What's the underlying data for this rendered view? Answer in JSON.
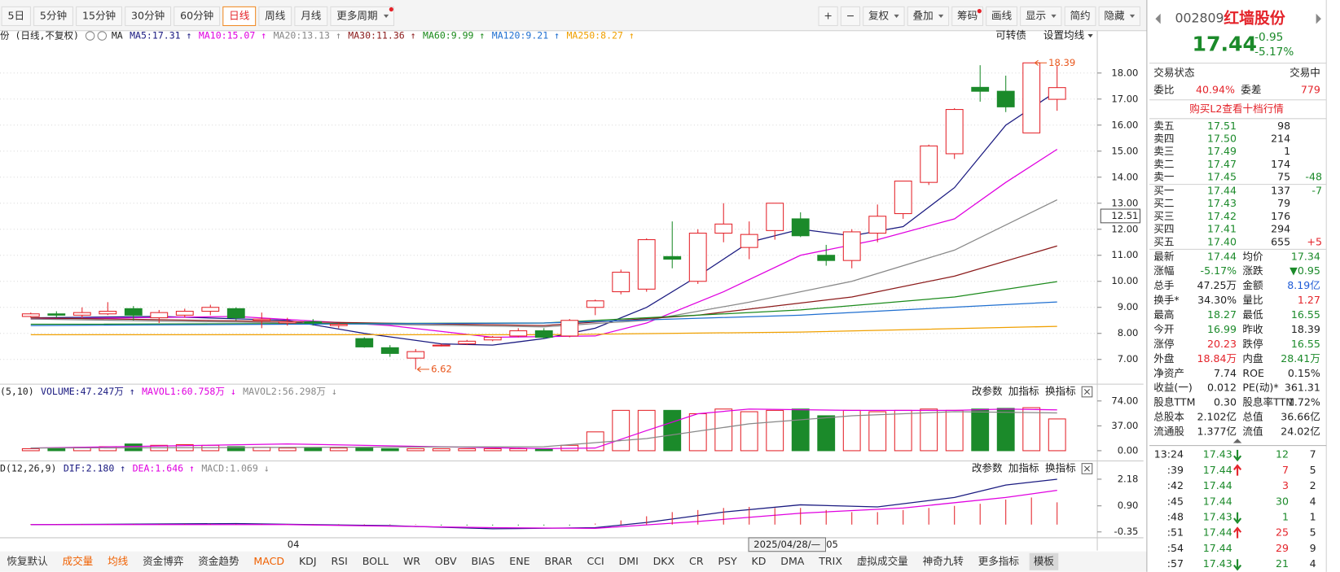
{
  "colors": {
    "up": "#e4232a",
    "down": "#1b8a2a",
    "neutral": "#222222",
    "blue": "#1e5bd6"
  },
  "toolbar": {
    "periods": [
      "5日",
      "5分钟",
      "15分钟",
      "30分钟",
      "60分钟",
      "日线",
      "周线",
      "月线",
      "更多周期"
    ],
    "active": 5,
    "period_menus": [
      8
    ],
    "period_dots": [
      8
    ],
    "tools": [
      "+",
      "−",
      "复权",
      "叠加",
      "筹码",
      "画线",
      "显示",
      "简约",
      "隐藏"
    ],
    "tool_menus": [
      2,
      3,
      6,
      8
    ],
    "tool_dots": [
      4
    ]
  },
  "panel_buttons": [
    "改参数",
    "加指标",
    "换指标"
  ],
  "chart_data": [
    {
      "type": "candlestick",
      "title": "份 (日线,不复权)",
      "ma_label": "MA",
      "extra_buttons": [
        "可转债",
        "设置均线"
      ],
      "categories": [
        null,
        null,
        null,
        null,
        null,
        null,
        null,
        null,
        null,
        null,
        "04",
        null,
        null,
        null,
        null,
        null,
        null,
        null,
        null,
        null,
        null,
        null,
        null,
        null,
        null,
        null,
        null,
        null,
        null,
        null,
        null,
        "05",
        null,
        null,
        null,
        null,
        null,
        null,
        null,
        null,
        null
      ],
      "cursor_label": "2025/04/28/—",
      "open": [
        8.65,
        8.75,
        8.7,
        8.75,
        8.95,
        8.6,
        8.7,
        8.85,
        8.95,
        8.5,
        8.4,
        8.45,
        8.3,
        7.8,
        7.45,
        7.05,
        7.55,
        7.6,
        7.75,
        7.9,
        8.1,
        7.9,
        9.0,
        9.6,
        9.7,
        10.95,
        10.0,
        11.85,
        11.3,
        11.95,
        12.4,
        11.0,
        10.8,
        11.85,
        12.6,
        13.8,
        14.9,
        17.45,
        17.3,
        15.7,
        16.99
      ],
      "high": [
        8.8,
        8.85,
        9.0,
        9.2,
        9.05,
        8.9,
        8.95,
        9.1,
        9.0,
        8.8,
        8.6,
        8.55,
        8.4,
        7.85,
        7.55,
        7.4,
        7.6,
        7.75,
        7.9,
        8.2,
        8.2,
        8.55,
        9.3,
        10.45,
        11.65,
        12.3,
        12.0,
        13.0,
        12.3,
        13.0,
        12.65,
        11.4,
        12.0,
        12.95,
        13.85,
        15.25,
        16.65,
        18.3,
        17.9,
        18.39,
        18.27
      ],
      "low": [
        8.6,
        8.6,
        8.6,
        8.7,
        8.5,
        8.4,
        8.6,
        8.7,
        8.5,
        8.2,
        8.3,
        8.3,
        8.2,
        7.45,
        7.1,
        6.62,
        7.5,
        7.55,
        7.7,
        7.85,
        7.8,
        7.85,
        8.7,
        9.5,
        9.6,
        10.5,
        9.9,
        11.5,
        10.85,
        11.6,
        11.7,
        10.6,
        10.5,
        11.5,
        12.4,
        13.7,
        14.7,
        16.9,
        16.5,
        15.7,
        16.55
      ],
      "close": [
        8.75,
        8.7,
        8.8,
        8.85,
        8.7,
        8.8,
        8.85,
        9.0,
        8.6,
        8.55,
        8.45,
        8.4,
        8.35,
        7.48,
        7.23,
        7.3,
        7.55,
        7.7,
        7.85,
        8.1,
        7.85,
        8.5,
        9.25,
        10.35,
        11.6,
        10.85,
        11.85,
        12.2,
        11.8,
        13.0,
        11.75,
        10.8,
        11.9,
        12.5,
        13.85,
        15.2,
        16.6,
        17.3,
        16.7,
        18.39,
        17.44
      ],
      "up_color": "#e4232a",
      "down_color": "#1b8a2a",
      "max_label": 18.39,
      "min_label": 6.62,
      "marker_color": "#e8561c",
      "cursor_price": 12.51,
      "series": [
        {
          "name": "MA5:17.31 ↑",
          "color": "#1a1a80",
          "x": [
            0,
            5,
            10,
            13,
            16,
            18,
            20,
            22,
            24,
            26,
            28,
            30,
            32,
            34,
            36,
            38,
            40
          ],
          "values": [
            8.6,
            8.65,
            8.5,
            8.0,
            7.6,
            7.55,
            7.8,
            8.2,
            9.0,
            10.2,
            11.5,
            12.0,
            11.75,
            12.1,
            13.6,
            16.0,
            17.31
          ]
        },
        {
          "name": "MA10:15.07 ↑",
          "color": "#e000e0",
          "x": [
            0,
            8,
            14,
            18,
            22,
            24,
            27,
            30,
            33,
            36,
            38,
            40
          ],
          "values": [
            8.55,
            8.65,
            8.3,
            7.85,
            7.9,
            8.4,
            9.6,
            11.0,
            11.6,
            12.4,
            13.8,
            15.07
          ]
        },
        {
          "name": "MA20:13.13 ↑",
          "color": "#888888",
          "x": [
            0,
            20,
            24,
            28,
            32,
            36,
            40
          ],
          "values": [
            8.55,
            8.25,
            8.5,
            9.2,
            10.0,
            11.2,
            13.13
          ]
        },
        {
          "name": "MA30:11.36 ↑",
          "color": "#8b1a1a",
          "x": [
            0,
            20,
            26,
            32,
            36,
            40
          ],
          "values": [
            8.6,
            8.3,
            8.7,
            9.4,
            10.2,
            11.36
          ]
        },
        {
          "name": "MA60:9.99 ↑",
          "color": "#1b8a1b",
          "x": [
            0,
            20,
            30,
            36,
            40
          ],
          "values": [
            8.35,
            8.4,
            8.9,
            9.4,
            9.99
          ]
        },
        {
          "name": "MA120:9.21 ↑",
          "color": "#1f6fd0",
          "x": [
            0,
            20,
            30,
            40
          ],
          "values": [
            8.3,
            8.4,
            8.7,
            9.21
          ]
        },
        {
          "name": "MA250:8.27 ↑",
          "color": "#f0a000",
          "x": [
            0,
            20,
            30,
            40
          ],
          "values": [
            7.95,
            7.95,
            8.05,
            8.27
          ]
        }
      ],
      "xlim": [
        -1.2,
        41.5
      ],
      "ylim": [
        6.15,
        19.1
      ],
      "yticks": [
        {
          "value": 7,
          "label": "7.00"
        },
        {
          "value": 8,
          "label": "8.00"
        },
        {
          "value": 9,
          "label": "9.00"
        },
        {
          "value": 10,
          "label": "10.00"
        },
        {
          "value": 11,
          "label": "11.00"
        },
        {
          "value": 12,
          "label": "12.00"
        },
        {
          "value": 13,
          "label": "13.00"
        },
        {
          "value": 14,
          "label": "14.00"
        },
        {
          "value": 15,
          "label": "15.00"
        },
        {
          "value": 16,
          "label": "16.00"
        },
        {
          "value": 17,
          "label": "17.00"
        },
        {
          "value": 18,
          "label": "18.00"
        }
      ],
      "grid": true
    },
    {
      "type": "bar",
      "title": "(5,10)",
      "up_color": "#e4232a",
      "down_color": "#1b8a2a",
      "series": [
        {
          "name": "VOLUME:47.247万 ↑",
          "color": "#1a1a80",
          "kind": "bar",
          "values": [
            3,
            4,
            5,
            6,
            10,
            8,
            9,
            8,
            6,
            5,
            4,
            4,
            4,
            4,
            3,
            3,
            3,
            3,
            3,
            3,
            3,
            8,
            28,
            60,
            60,
            60,
            55,
            62,
            58,
            60,
            62,
            52,
            60,
            58,
            60,
            62,
            60,
            62,
            63,
            64,
            47.247
          ]
        },
        {
          "name": "MAVOL1:60.758万 ↓",
          "color": "#e000e0",
          "kind": "line",
          "x": [
            0,
            10,
            20,
            22,
            24,
            26,
            28,
            32,
            36,
            38,
            40
          ],
          "values": [
            4,
            10,
            3,
            4,
            30,
            55,
            62,
            60,
            60,
            62,
            60.758
          ]
        },
        {
          "name": "MAVOL2:56.298万 ↓",
          "color": "#888888",
          "kind": "line",
          "x": [
            0,
            20,
            24,
            28,
            32,
            36,
            40
          ],
          "values": [
            4,
            6,
            18,
            40,
            52,
            58,
            56.298
          ]
        }
      ],
      "xlim": [
        -1.2,
        41.5
      ],
      "ylim": [
        0,
        80
      ],
      "yticks": [
        {
          "value": 0,
          "label": "0.00"
        },
        {
          "value": 37,
          "label": "37.00"
        },
        {
          "value": 74,
          "label": "74.00"
        }
      ]
    },
    {
      "type": "bar",
      "title": "D(12,26,9)",
      "up_color": "#e4232a",
      "down_color": "#1b8a2a",
      "series": [
        {
          "name": "DIF:2.180 ↑",
          "color": "#1a1a80",
          "kind": "line",
          "x": [
            0,
            8,
            14,
            18,
            22,
            24,
            27,
            30,
            33,
            36,
            38,
            40
          ],
          "values": [
            0.0,
            0.05,
            -0.05,
            -0.2,
            -0.15,
            0.1,
            0.6,
            0.95,
            0.85,
            1.3,
            1.9,
            2.18
          ]
        },
        {
          "name": "DEA:1.646 ↑",
          "color": "#e000e0",
          "kind": "line",
          "x": [
            0,
            10,
            18,
            22,
            26,
            30,
            34,
            38,
            40
          ],
          "values": [
            0.0,
            0.0,
            -0.15,
            -0.18,
            0.15,
            0.55,
            0.8,
            1.3,
            1.646
          ]
        },
        {
          "name": "MACD:1.069 ↓",
          "color": "#888888",
          "kind": "stem",
          "values": [
            0.02,
            0.02,
            0.02,
            0.02,
            0.02,
            0.02,
            0.02,
            0.02,
            0.02,
            0.02,
            0.02,
            0.02,
            0.02,
            0.02,
            0.02,
            0.02,
            -0.05,
            -0.05,
            -0.05,
            -0.05,
            -0.05,
            -0.05,
            0.05,
            0.2,
            0.4,
            0.6,
            0.7,
            0.8,
            0.85,
            0.8,
            0.8,
            0.7,
            0.6,
            0.6,
            0.7,
            0.8,
            0.9,
            1.0,
            1.2,
            1.3,
            1.069
          ]
        }
      ],
      "xlim": [
        -1.2,
        41.5
      ],
      "ylim": [
        -0.55,
        2.4
      ],
      "yticks": [
        {
          "value": -0.35,
          "label": "-0.35"
        },
        {
          "value": 0.9,
          "label": "0.90"
        },
        2.18
      ]
    }
  ],
  "quote": {
    "code": "002809",
    "name": "红墙股份",
    "price": "17.44",
    "change": "-0.95",
    "change_pct": "-5.17%",
    "status_label": "交易状态",
    "status": "交易中",
    "ratio_label": "委比",
    "ratio": "40.94%",
    "diff_label": "委差",
    "diff": "779",
    "l2_link": "购买L2查看十档行情",
    "asks": [
      {
        "label": "卖五",
        "price": "17.51",
        "volume": "98"
      },
      {
        "label": "卖四",
        "price": "17.50",
        "volume": "214"
      },
      {
        "label": "卖三",
        "price": "17.49",
        "volume": "1"
      },
      {
        "label": "卖二",
        "price": "17.47",
        "volume": "174"
      },
      {
        "label": "卖一",
        "price": "17.45",
        "volume": "75",
        "change": "-48"
      }
    ],
    "bids": [
      {
        "label": "买一",
        "price": "17.44",
        "volume": "137",
        "change": "-7"
      },
      {
        "label": "买二",
        "price": "17.43",
        "volume": "79"
      },
      {
        "label": "买三",
        "price": "17.42",
        "volume": "176"
      },
      {
        "label": "买四",
        "price": "17.41",
        "volume": "294"
      },
      {
        "label": "买五",
        "price": "17.40",
        "volume": "655",
        "change": "+5"
      }
    ],
    "stats": [
      {
        "cells": [
          "最新",
          "17.44",
          "均价",
          "17.34"
        ],
        "tones": [
          "down",
          "down"
        ]
      },
      {
        "cells": [
          "涨幅",
          "-5.17%",
          "涨跌",
          "▼0.95"
        ],
        "tones": [
          "down",
          "down"
        ]
      },
      {
        "cells": [
          "总手",
          "47.25万",
          "金额",
          "8.19亿"
        ],
        "tones": [
          "neutral",
          "blue"
        ]
      },
      {
        "cells": [
          "换手*",
          "34.30%",
          "量比",
          "1.27"
        ],
        "tones": [
          "neutral",
          "up"
        ]
      },
      {
        "cells": [
          "最高",
          "18.27",
          "最低",
          "16.55"
        ],
        "tones": [
          "down",
          "down"
        ]
      },
      {
        "cells": [
          "今开",
          "16.99",
          "昨收",
          "18.39"
        ],
        "tones": [
          "down",
          "neutral"
        ]
      },
      {
        "cells": [
          "涨停",
          "20.23",
          "跌停",
          "16.55"
        ],
        "tones": [
          "up",
          "down"
        ]
      },
      {
        "cells": [
          "外盘",
          "18.84万",
          "内盘",
          "28.41万"
        ],
        "tones": [
          "up",
          "down"
        ]
      },
      {
        "cells": [
          "净资产",
          "7.74",
          "ROE",
          "0.15%"
        ],
        "tones": [
          "neutral",
          "neutral"
        ]
      },
      {
        "cells": [
          "收益(一)",
          "0.012",
          "PE(动)*",
          "361.31"
        ],
        "tones": [
          "neutral",
          "neutral"
        ]
      },
      {
        "cells": [
          "股息TTM",
          "0.30",
          "股息率TTM",
          "1.72%"
        ],
        "tones": [
          "neutral",
          "neutral"
        ]
      },
      {
        "cells": [
          "总股本",
          "2.102亿",
          "总值",
          "36.66亿"
        ],
        "tones": [
          "neutral",
          "neutral"
        ]
      },
      {
        "cells": [
          "流通股",
          "1.377亿",
          "流值",
          "24.02亿"
        ],
        "tones": [
          "neutral",
          "neutral"
        ]
      }
    ],
    "trades": [
      {
        "time": "13:24",
        "price": "17.43",
        "volume": "12",
        "count": "7",
        "dir": "down",
        "tone": "down"
      },
      {
        "time": ":39",
        "price": "17.44",
        "volume": "7",
        "count": "5",
        "dir": "up",
        "tone": "up"
      },
      {
        "time": ":42",
        "price": "17.44",
        "volume": "3",
        "count": "2",
        "dir": null,
        "tone": "up"
      },
      {
        "time": ":45",
        "price": "17.44",
        "volume": "30",
        "count": "4",
        "dir": null,
        "tone": "down"
      },
      {
        "time": ":48",
        "price": "17.43",
        "volume": "1",
        "count": "1",
        "dir": "down",
        "tone": "down"
      },
      {
        "time": ":51",
        "price": "17.44",
        "volume": "25",
        "count": "5",
        "dir": "up",
        "tone": "up"
      },
      {
        "time": ":54",
        "price": "17.44",
        "volume": "29",
        "count": "9",
        "dir": null,
        "tone": "up"
      },
      {
        "time": ":57",
        "price": "17.43",
        "volume": "21",
        "count": "4",
        "dir": "down",
        "tone": "down"
      }
    ]
  },
  "indicator_tabs": {
    "items": [
      "恢复默认",
      "成交量",
      "均线",
      "资金博弈",
      "资金趋势",
      "MACD",
      "KDJ",
      "RSI",
      "BOLL",
      "WR",
      "OBV",
      "BIAS",
      "ENE",
      "BRAR",
      "CCI",
      "DMI",
      "DKX",
      "CR",
      "PSY",
      "KD",
      "DMA",
      "TRIX",
      "虚拟成交量",
      "神奇九转",
      "更多指标",
      "模板"
    ],
    "highlighted": [
      1,
      2,
      5
    ],
    "selected": 25
  }
}
